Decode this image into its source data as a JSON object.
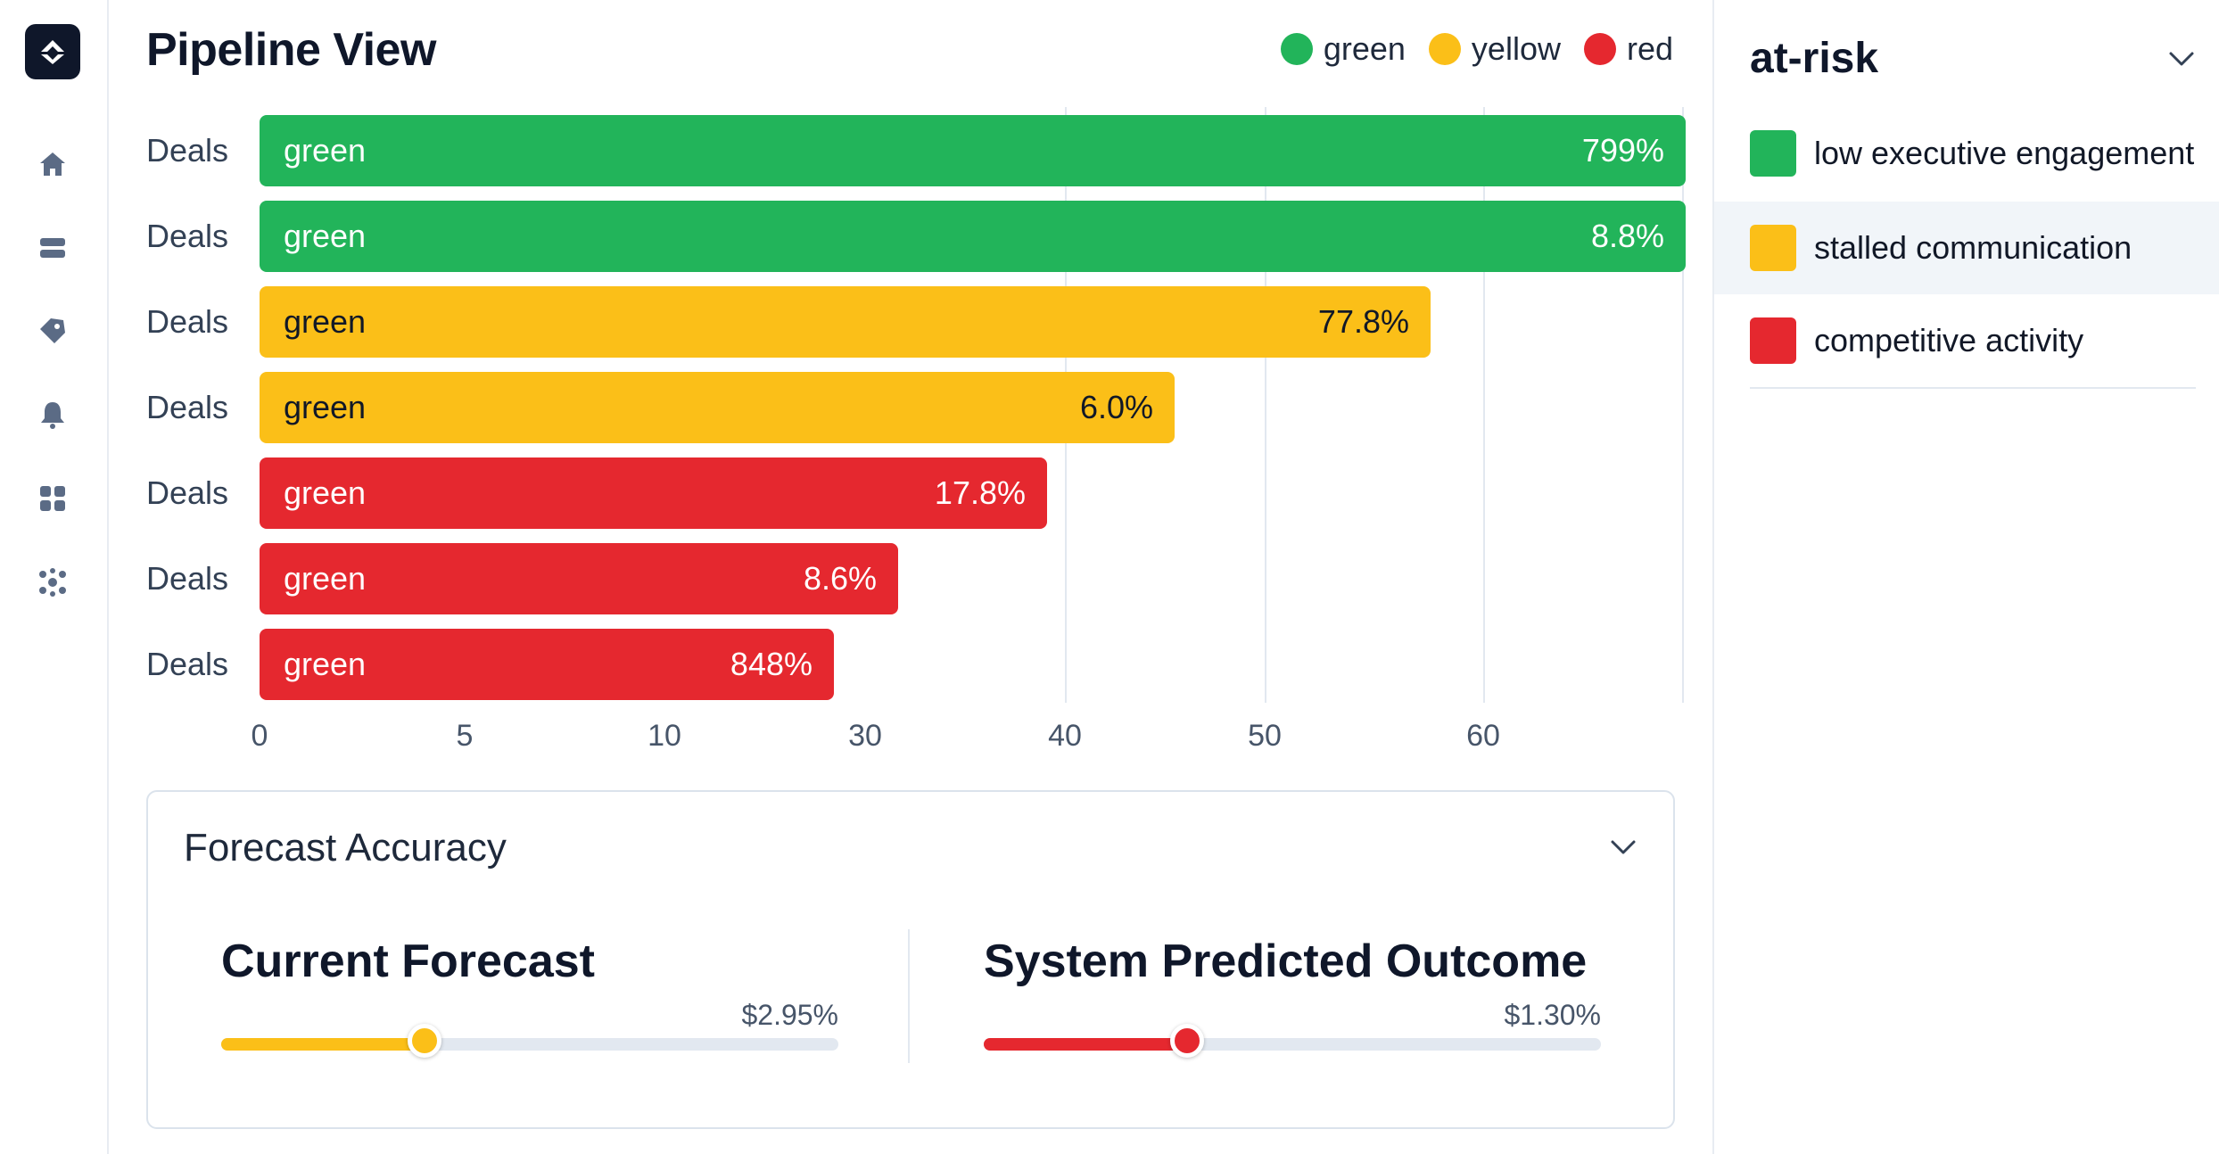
{
  "page": {
    "title": "Pipeline View"
  },
  "legend": [
    {
      "label": "green",
      "color": "#22b45a"
    },
    {
      "label": "yellow",
      "color": "#fbbf18"
    },
    {
      "label": "red",
      "color": "#e5282f"
    }
  ],
  "nav_icons": [
    "home-icon",
    "layers-icon",
    "tag-icon",
    "bell-icon",
    "grid-icon",
    "network-icon"
  ],
  "chart_data": {
    "type": "bar",
    "orientation": "horizontal",
    "title": "Pipeline View",
    "categories": [
      "Deals",
      "Deals",
      "Deals",
      "Deals",
      "Deals",
      "Deals",
      "Deals"
    ],
    "bar_labels": [
      "green",
      "green",
      "green",
      "green",
      "green",
      "green",
      "green"
    ],
    "data_labels": [
      "799%",
      "8.8%",
      "77.8%",
      "6.0%",
      "17.8%",
      "8.6%",
      "848%"
    ],
    "statuses": [
      "green",
      "green",
      "yellow",
      "yellow",
      "red",
      "red",
      "red"
    ],
    "x_ticks": [
      "0",
      "5",
      "10",
      "30",
      "40",
      "50",
      "60"
    ],
    "values": [
      67,
      67,
      55,
      43,
      37,
      30,
      27
    ]
  },
  "forecast": {
    "title": "Forecast Accuracy",
    "current": {
      "label": "Current Forecast",
      "value": "$2.95%",
      "level": 0.33,
      "color": "#fbbf18"
    },
    "predicted": {
      "label": "System Predicted Outcome",
      "value": "$1.30%",
      "level": 0.33,
      "color": "#e5282f"
    }
  },
  "side": {
    "title": "at-risk",
    "items": [
      {
        "label": "low executive engagement",
        "color": "#22b45a"
      },
      {
        "label": "stalled communication",
        "color": "#fbbf18"
      },
      {
        "label": "competitive activity",
        "color": "#e5282f"
      }
    ]
  }
}
